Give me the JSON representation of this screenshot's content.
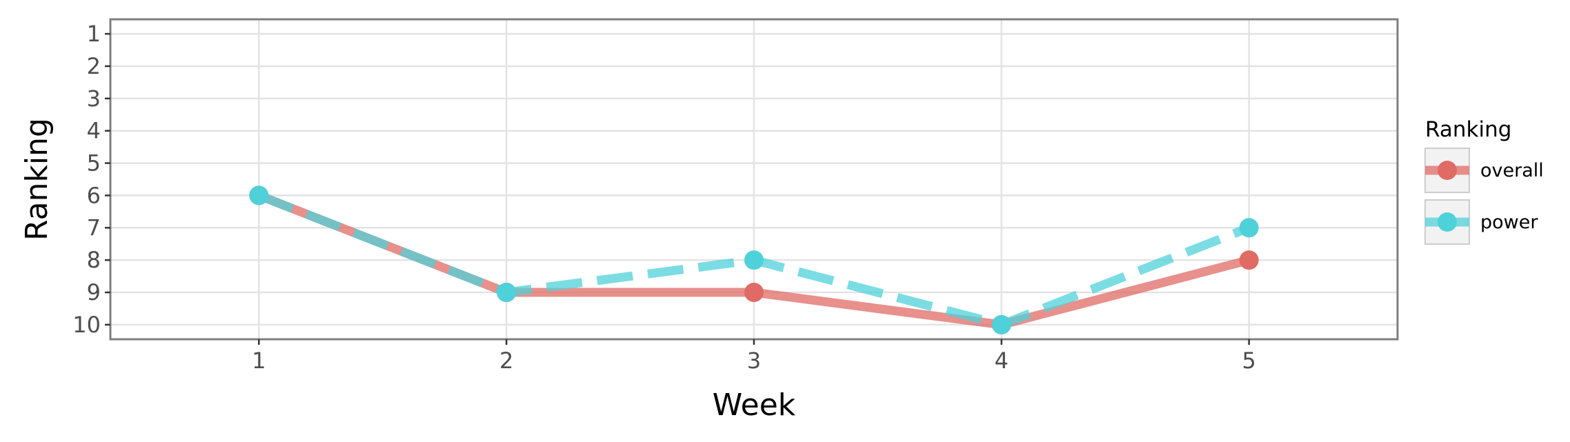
{
  "chart_data": {
    "type": "line",
    "xlabel": "Week",
    "ylabel": "Ranking",
    "x": [
      1,
      2,
      3,
      4,
      5
    ],
    "xlim": [
      0.4,
      5.6
    ],
    "ylim": [
      10.45,
      0.55
    ],
    "y_reversed": true,
    "yticks": [
      1,
      2,
      3,
      4,
      5,
      6,
      7,
      8,
      9,
      10
    ],
    "grid": true,
    "legend_title": "Ranking",
    "legend_position": "right",
    "series": [
      {
        "name": "overall",
        "values": [
          6,
          9,
          9,
          10,
          8
        ],
        "color": "#e06b65",
        "line_style": "solid"
      },
      {
        "name": "power",
        "values": [
          6,
          9,
          8,
          10,
          7
        ],
        "color": "#4fd1d9",
        "line_style": "dashed"
      }
    ]
  }
}
